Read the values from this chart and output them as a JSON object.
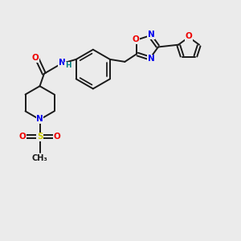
{
  "background_color": "#ebebeb",
  "fig_size": [
    3.0,
    3.0
  ],
  "dpi": 100,
  "bond_color": "#1a1a1a",
  "bond_lw": 1.4,
  "atom_colors": {
    "C": "#1a1a1a",
    "N": "#0000ee",
    "O": "#ee0000",
    "S": "#cccc00",
    "H": "#008080"
  },
  "font_size": 7.5
}
